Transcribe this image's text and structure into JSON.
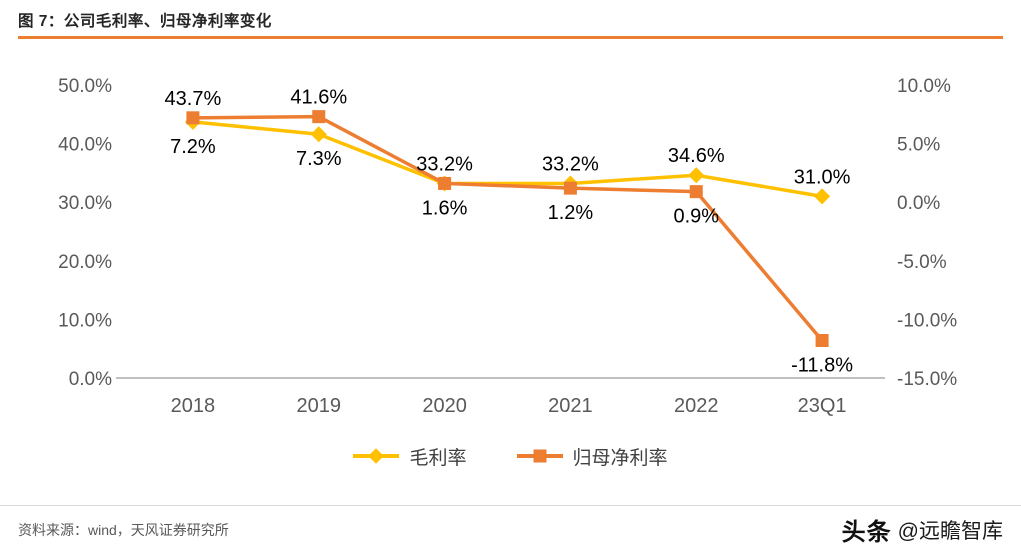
{
  "title": "图 7：公司毛利率、归母净利率变化",
  "footer": {
    "source": "资料来源：wind，天风证券研究所",
    "brand": "头条",
    "handle": "@远瞻智库"
  },
  "colors": {
    "gross": "#FFC000",
    "net": "#ED7D31",
    "title_rule": "#ED7D31",
    "axis_text": "#595959",
    "label_text": "#000000",
    "axis_line": "#808080"
  },
  "chart_data": {
    "type": "line",
    "title": "图 7：公司毛利率、归母净利率变化",
    "categories": [
      "2018",
      "2019",
      "2020",
      "2021",
      "2022",
      "23Q1"
    ],
    "series": [
      {
        "name": "毛利率",
        "axis": "left",
        "marker": "diamond",
        "color": "#FFC000",
        "values": [
          43.7,
          41.6,
          33.2,
          33.2,
          34.6,
          31.0
        ],
        "labels": [
          "43.7%",
          "41.6%",
          "33.2%",
          "33.2%",
          "34.6%",
          "31.0%"
        ],
        "label_position": "above"
      },
      {
        "name": "归母净利率",
        "axis": "right",
        "marker": "square",
        "color": "#ED7D31",
        "values": [
          7.2,
          7.3,
          1.6,
          1.2,
          0.9,
          -11.8
        ],
        "labels": [
          "7.2%",
          "7.3%",
          "1.6%",
          "1.2%",
          "0.9%",
          "-11.8%"
        ],
        "label_position": "below"
      }
    ],
    "left_axis": {
      "min": 0,
      "max": 50,
      "ticks": [
        0,
        10,
        20,
        30,
        40,
        50
      ],
      "tick_labels": [
        "0.0%",
        "10.0%",
        "20.0%",
        "30.0%",
        "40.0%",
        "50.0%"
      ]
    },
    "right_axis": {
      "min": -15,
      "max": 10,
      "ticks": [
        -15,
        -10,
        -5,
        0,
        5,
        10
      ],
      "tick_labels": [
        "-15.0%",
        "-10.0%",
        "-5.0%",
        "0.0%",
        "5.0%",
        "10.0%"
      ]
    },
    "legend": [
      "毛利率",
      "归母净利率"
    ],
    "legend_position": "bottom",
    "grid": false
  }
}
